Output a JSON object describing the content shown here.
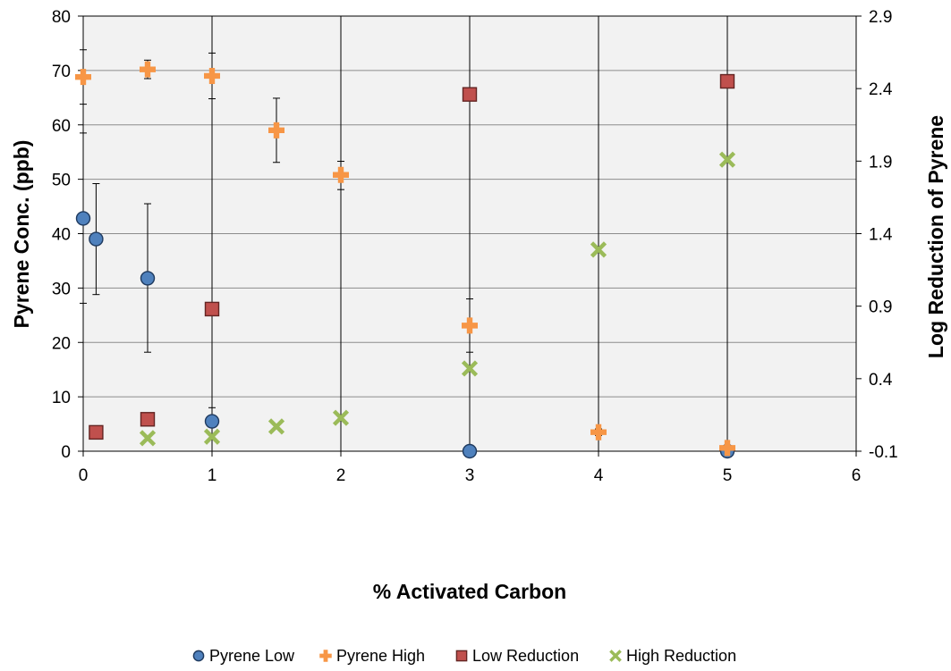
{
  "chart_data": {
    "type": "scatter",
    "xlabel": "% Activated Carbon",
    "ylabel": "Pyrene Conc. (ppb)",
    "y2label": "Log Reduction of Pyrene",
    "xlim": [
      0,
      6
    ],
    "ylim": [
      0,
      80
    ],
    "y2lim": [
      -0.1,
      2.9
    ],
    "x_ticks": [
      "0",
      "1",
      "2",
      "3",
      "4",
      "5",
      "6"
    ],
    "y_ticks": [
      "0",
      "10",
      "20",
      "30",
      "40",
      "50",
      "60",
      "70",
      "80"
    ],
    "y2_ticks": [
      "-0.1",
      "0.4",
      "0.9",
      "1.4",
      "1.9",
      "2.4",
      "2.9"
    ],
    "grid": true,
    "legend_position": "bottom",
    "series": [
      {
        "name": "Pyrene Low",
        "axis": "left",
        "marker": "circle",
        "color": "#4f81bd",
        "stroke": "#1f3a5f",
        "points": [
          {
            "x": 0,
            "y": 42.8,
            "err_low": 27.2,
            "err_high": 58.5
          },
          {
            "x": 0.1,
            "y": 39,
            "err_low": 28.8,
            "err_high": 49.2
          },
          {
            "x": 0.5,
            "y": 31.8,
            "err_low": 18.2,
            "err_high": 45.5
          },
          {
            "x": 1,
            "y": 5.5,
            "err_low": 3.0,
            "err_high": 8.0
          },
          {
            "x": 3,
            "y": 0,
            "err_low": 0,
            "err_high": 0
          },
          {
            "x": 5,
            "y": 0,
            "err_low": 0,
            "err_high": 0
          }
        ]
      },
      {
        "name": "Pyrene High",
        "axis": "left",
        "marker": "plus",
        "color": "#f79646",
        "points": [
          {
            "x": 0,
            "y": 68.8,
            "err_low": 63.8,
            "err_high": 73.8
          },
          {
            "x": 0.5,
            "y": 70.2,
            "err_low": 68.5,
            "err_high": 71.9
          },
          {
            "x": 1,
            "y": 69,
            "err_low": 64.8,
            "err_high": 73.2
          },
          {
            "x": 1.5,
            "y": 59,
            "err_low": 53.1,
            "err_high": 64.9
          },
          {
            "x": 2,
            "y": 50.8,
            "err_low": 48.1,
            "err_high": 53.3
          },
          {
            "x": 3,
            "y": 23.1,
            "err_low": 18.2,
            "err_high": 28.0
          },
          {
            "x": 4,
            "y": 3.5,
            "err_low": 2.9,
            "err_high": 4.1
          },
          {
            "x": 5,
            "y": 0.6,
            "err_low": 0.2,
            "err_high": 1.0
          }
        ]
      },
      {
        "name": "Low Reduction",
        "axis": "right",
        "marker": "square",
        "color": "#c0504d",
        "stroke": "#632523",
        "points": [
          {
            "x": 0.1,
            "y": 0.03
          },
          {
            "x": 0.5,
            "y": 0.12
          },
          {
            "x": 1,
            "y": 0.88,
            "err_low": -0.1,
            "err_high": 2.9
          },
          {
            "x": 3,
            "y": 2.36,
            "err_low": -0.1,
            "err_high": 2.9
          },
          {
            "x": 5,
            "y": 2.45,
            "err_low": -0.1,
            "err_high": 2.9
          }
        ]
      },
      {
        "name": "High Reduction",
        "axis": "right",
        "marker": "x",
        "color": "#9bbb59",
        "points": [
          {
            "x": 0.5,
            "y": -0.01
          },
          {
            "x": 1,
            "y": 0.0
          },
          {
            "x": 1.5,
            "y": 0.07
          },
          {
            "x": 2,
            "y": 0.13,
            "err_low": -0.1,
            "err_high": 2.9
          },
          {
            "x": 3,
            "y": 0.47
          },
          {
            "x": 4,
            "y": 1.29,
            "err_low": -0.1,
            "err_high": 2.9
          },
          {
            "x": 5,
            "y": 1.91,
            "err_low": -0.1,
            "err_high": 2.9
          }
        ]
      }
    ]
  }
}
